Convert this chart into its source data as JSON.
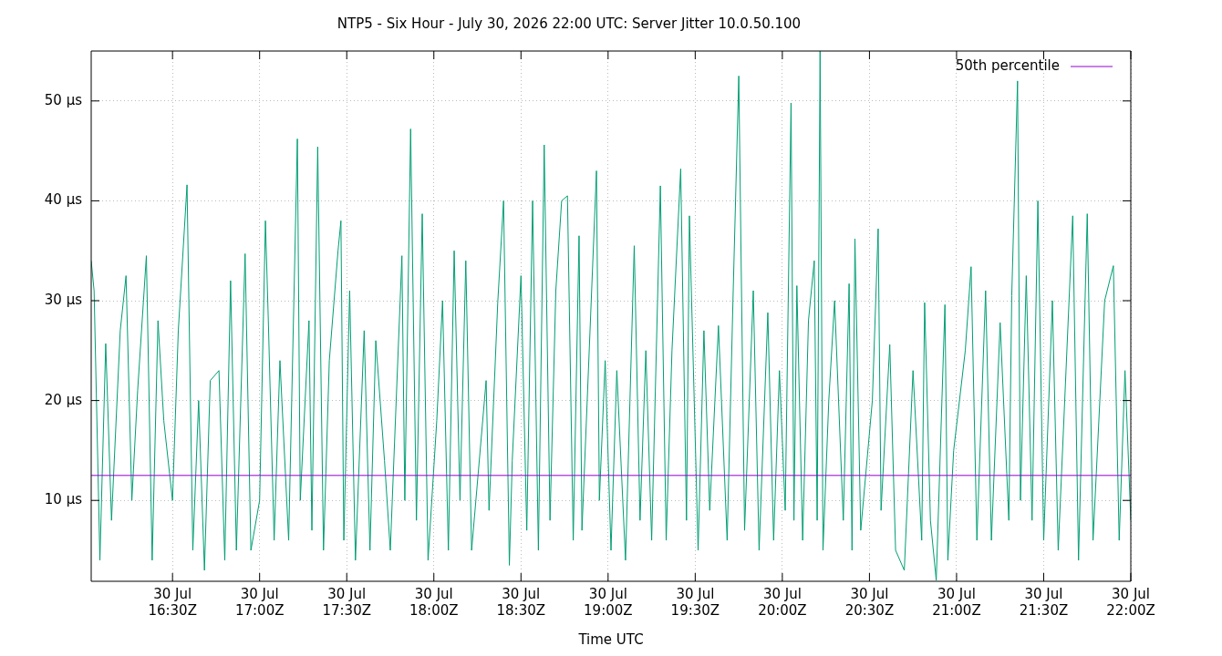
{
  "chart_data": {
    "type": "line",
    "title": "NTP5 - Six Hour - July 30, 2026 22:00 UTC: Server Jitter 10.0.50.100",
    "xlabel": "Time UTC",
    "xlim": [
      "2026-07-30T16:02",
      "2026-07-30T22:00"
    ],
    "xticks": [
      {
        "value": "2026-07-30T16:30",
        "label": "30 Jul\n16:30Z"
      },
      {
        "value": "2026-07-30T17:00",
        "label": "30 Jul\n17:00Z"
      },
      {
        "value": "2026-07-30T17:30",
        "label": "30 Jul\n17:30Z"
      },
      {
        "value": "2026-07-30T18:00",
        "label": "30 Jul\n18:00Z"
      },
      {
        "value": "2026-07-30T18:30",
        "label": "30 Jul\n18:30Z"
      },
      {
        "value": "2026-07-30T19:00",
        "label": "30 Jul\n19:00Z"
      },
      {
        "value": "2026-07-30T19:30",
        "label": "30 Jul\n19:30Z"
      },
      {
        "value": "2026-07-30T20:00",
        "label": "30 Jul\n20:00Z"
      },
      {
        "value": "2026-07-30T20:30",
        "label": "30 Jul\n20:30Z"
      },
      {
        "value": "2026-07-30T21:00",
        "label": "30 Jul\n21:00Z"
      },
      {
        "value": "2026-07-30T21:30",
        "label": "30 Jul\n21:30Z"
      },
      {
        "value": "2026-07-30T22:00",
        "label": "30 Jul\n22:00Z"
      }
    ],
    "ylim": [
      1.9,
      55
    ],
    "yticks": [
      {
        "value": 10,
        "label": "10 µs"
      },
      {
        "value": 20,
        "label": "20 µs"
      },
      {
        "value": 30,
        "label": "30 µs"
      },
      {
        "value": 40,
        "label": "40 µs"
      },
      {
        "value": 50,
        "label": "50 µs"
      }
    ],
    "grid": true,
    "legend": "top right",
    "marker": "none",
    "line_style": "solid",
    "ref_lines": [
      {
        "axis": "y",
        "value": 12.5,
        "label": "50th percentile",
        "color": "#9400d3"
      }
    ],
    "series": [
      {
        "color": "#009e73",
        "x": [
          "2026-07-30T16:02",
          "2026-07-30T16:03",
          "2026-07-30T16:05",
          "2026-07-30T16:07",
          "2026-07-30T16:09",
          "2026-07-30T16:12",
          "2026-07-30T16:14",
          "2026-07-30T16:16",
          "2026-07-30T16:18",
          "2026-07-30T16:21",
          "2026-07-30T16:23",
          "2026-07-30T16:25",
          "2026-07-30T16:27",
          "2026-07-30T16:30",
          "2026-07-30T16:32",
          "2026-07-30T16:35",
          "2026-07-30T16:37",
          "2026-07-30T16:39",
          "2026-07-30T16:41",
          "2026-07-30T16:43",
          "2026-07-30T16:46",
          "2026-07-30T16:48",
          "2026-07-30T16:50",
          "2026-07-30T16:52",
          "2026-07-30T16:55",
          "2026-07-30T16:57",
          "2026-07-30T17:00",
          "2026-07-30T17:02",
          "2026-07-30T17:03",
          "2026-07-30T17:05",
          "2026-07-30T17:07",
          "2026-07-30T17:10",
          "2026-07-30T17:13",
          "2026-07-30T17:14",
          "2026-07-30T17:17",
          "2026-07-30T17:18",
          "2026-07-30T17:20",
          "2026-07-30T17:22",
          "2026-07-30T17:24",
          "2026-07-30T17:27",
          "2026-07-30T17:28",
          "2026-07-30T17:29",
          "2026-07-30T17:31",
          "2026-07-30T17:33",
          "2026-07-30T17:36",
          "2026-07-30T17:38",
          "2026-07-30T17:40",
          "2026-07-30T17:43",
          "2026-07-30T17:45",
          "2026-07-30T17:49",
          "2026-07-30T17:50",
          "2026-07-30T17:52",
          "2026-07-30T17:54",
          "2026-07-30T17:56",
          "2026-07-30T17:58",
          "2026-07-30T18:01",
          "2026-07-30T18:03",
          "2026-07-30T18:05",
          "2026-07-30T18:07",
          "2026-07-30T18:09",
          "2026-07-30T18:11",
          "2026-07-30T18:13",
          "2026-07-30T18:18",
          "2026-07-30T18:19",
          "2026-07-30T18:22",
          "2026-07-30T18:24",
          "2026-07-30T18:26",
          "2026-07-30T18:27",
          "2026-07-30T18:30",
          "2026-07-30T18:32",
          "2026-07-30T18:34",
          "2026-07-30T18:36",
          "2026-07-30T18:38",
          "2026-07-30T18:40",
          "2026-07-30T18:42",
          "2026-07-30T18:44",
          "2026-07-30T18:46",
          "2026-07-30T18:48",
          "2026-07-30T18:50",
          "2026-07-30T18:51",
          "2026-07-30T18:56",
          "2026-07-30T18:57",
          "2026-07-30T18:59",
          "2026-07-30T19:01",
          "2026-07-30T19:03",
          "2026-07-30T19:06",
          "2026-07-30T19:09",
          "2026-07-30T19:11",
          "2026-07-30T19:13",
          "2026-07-30T19:15",
          "2026-07-30T19:18",
          "2026-07-30T19:20",
          "2026-07-30T19:22",
          "2026-07-30T19:25",
          "2026-07-30T19:27",
          "2026-07-30T19:28",
          "2026-07-30T19:31",
          "2026-07-30T19:33",
          "2026-07-30T19:35",
          "2026-07-30T19:38",
          "2026-07-30T19:41",
          "2026-07-30T19:43",
          "2026-07-30T19:45",
          "2026-07-30T19:47",
          "2026-07-30T19:50",
          "2026-07-30T19:52",
          "2026-07-30T19:55",
          "2026-07-30T19:57",
          "2026-07-30T19:59",
          "2026-07-30T20:01",
          "2026-07-30T20:03",
          "2026-07-30T20:04",
          "2026-07-30T20:05",
          "2026-07-30T20:07",
          "2026-07-30T20:09",
          "2026-07-30T20:11",
          "2026-07-30T20:12",
          "2026-07-30T20:13",
          "2026-07-30T20:14",
          "2026-07-30T20:16",
          "2026-07-30T20:18",
          "2026-07-30T20:21",
          "2026-07-30T20:23",
          "2026-07-30T20:24",
          "2026-07-30T20:25",
          "2026-07-30T20:27",
          "2026-07-30T20:31",
          "2026-07-30T20:33",
          "2026-07-30T20:34",
          "2026-07-30T20:37",
          "2026-07-30T20:39",
          "2026-07-30T20:42",
          "2026-07-30T20:45",
          "2026-07-30T20:48",
          "2026-07-30T20:49",
          "2026-07-30T20:51",
          "2026-07-30T20:53",
          "2026-07-30T20:56",
          "2026-07-30T20:57",
          "2026-07-30T20:59",
          "2026-07-30T21:03",
          "2026-07-30T21:05",
          "2026-07-30T21:07",
          "2026-07-30T21:10",
          "2026-07-30T21:12",
          "2026-07-30T21:15",
          "2026-07-30T21:18",
          "2026-07-30T21:19",
          "2026-07-30T21:21",
          "2026-07-30T21:22",
          "2026-07-30T21:24",
          "2026-07-30T21:26",
          "2026-07-30T21:28",
          "2026-07-30T21:30",
          "2026-07-30T21:33",
          "2026-07-30T21:35",
          "2026-07-30T21:40",
          "2026-07-30T21:42",
          "2026-07-30T21:45",
          "2026-07-30T21:47",
          "2026-07-30T21:51",
          "2026-07-30T21:54",
          "2026-07-30T21:56",
          "2026-07-30T21:58",
          "2026-07-30T22:00"
        ],
        "values": [
          34,
          31,
          4,
          25.7,
          8,
          27,
          32.5,
          10,
          21,
          34.5,
          4,
          28,
          18,
          10,
          27,
          41.6,
          5,
          20,
          3,
          22,
          23,
          4,
          32,
          5,
          34.7,
          5,
          10,
          38,
          28,
          6,
          24,
          6,
          46.2,
          10,
          28,
          7,
          45.4,
          5,
          24,
          35,
          38,
          6,
          31,
          4,
          27,
          5,
          26,
          14,
          5,
          34.5,
          10,
          47.2,
          8,
          38.7,
          4,
          18,
          30,
          5,
          35,
          10,
          34,
          5,
          22,
          9,
          29.8,
          40,
          3.5,
          14,
          32.5,
          7,
          40,
          5,
          45.6,
          8,
          31,
          40,
          40.5,
          6,
          36.5,
          7,
          43,
          10,
          24,
          5,
          23,
          4,
          35.5,
          8,
          25,
          6,
          41.5,
          6,
          25,
          43.2,
          8,
          38.5,
          5,
          27,
          9,
          27.5,
          6,
          30,
          52.5,
          7,
          31,
          5,
          28.8,
          6,
          23,
          9,
          49.8,
          8,
          31.5,
          6,
          28,
          34,
          8,
          55,
          5,
          20,
          30,
          8,
          31.7,
          5,
          36.2,
          7,
          20,
          37.2,
          9,
          25.6,
          5,
          3,
          23,
          6,
          29.8,
          8,
          2,
          29.6,
          4,
          15,
          25,
          33.4,
          6,
          31,
          6,
          27.8,
          8,
          30.5,
          52,
          10,
          32.5,
          8,
          40,
          6,
          30,
          5,
          38.5,
          4,
          38.7,
          6,
          30,
          33.5,
          6,
          23,
          8
        ]
      }
    ]
  }
}
